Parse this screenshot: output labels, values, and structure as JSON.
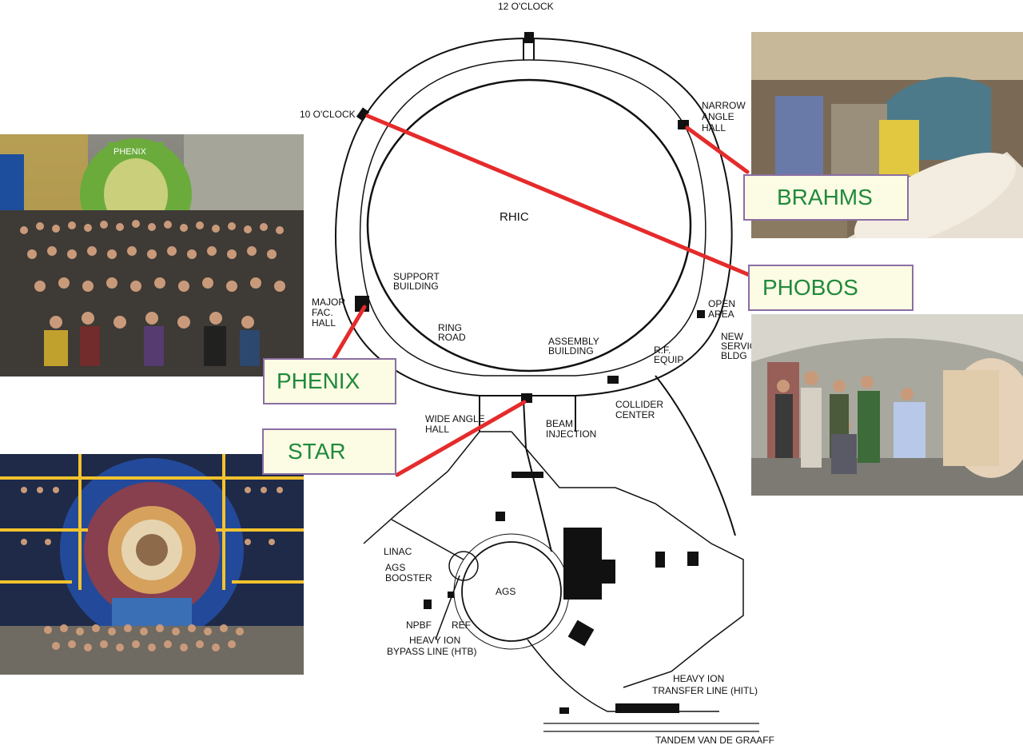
{
  "map": {
    "ring_name": "RHIC",
    "labels": {
      "twelve_oclock": "12 O'CLOCK",
      "ten_oclock": "10 O'CLOCK",
      "narrow_angle_1": "NARROW",
      "narrow_angle_2": "ANGLE",
      "narrow_angle_3": "HALL",
      "support_1": "SUPPORT",
      "support_2": "BUILDING",
      "major_1": "MAJOR",
      "major_2": "FAC.",
      "major_3": "HALL",
      "ring_road_1": "RING",
      "ring_road_2": "ROAD",
      "open_area_1": "OPEN",
      "open_area_2": "AREA",
      "new_service_1": "NEW",
      "new_service_2": "SERVIC",
      "new_service_3": "BLDG",
      "assembly_1": "ASSEMBLY",
      "assembly_2": "BUILDING",
      "rf_1": "R.F.",
      "rf_2": "EQUIP.",
      "collider_1": "COLLIDER",
      "collider_2": "CENTER",
      "wide_angle_1": "WIDE ANGLE",
      "wide_angle_2": "HALL",
      "beam_1": "BEAM",
      "beam_2": "INJECTION",
      "linac": "LINAC",
      "booster_1": "AGS",
      "booster_2": "BOOSTER",
      "ags": "AGS",
      "npbf": "NPBF",
      "ref": "REF",
      "htb_1": "HEAVY ION",
      "htb_2": "BYPASS LINE (HTB)",
      "hitl_1": "HEAVY ION",
      "hitl_2": "TRANSFER LINE (HITL)",
      "tandem": "TANDEM VAN DE GRAAFF"
    }
  },
  "callouts": {
    "brahms": "BRAHMS",
    "phobos": "PHOBOS",
    "phenix": "PHENIX",
    "star": "STAR"
  },
  "photos": {
    "phenix_sign": "PHENIX"
  },
  "colors": {
    "arrow": "#e52b2b",
    "callout_text": "#1f8a3c",
    "callout_border": "#8a6ea4",
    "callout_fill": "#fcfbe3"
  }
}
